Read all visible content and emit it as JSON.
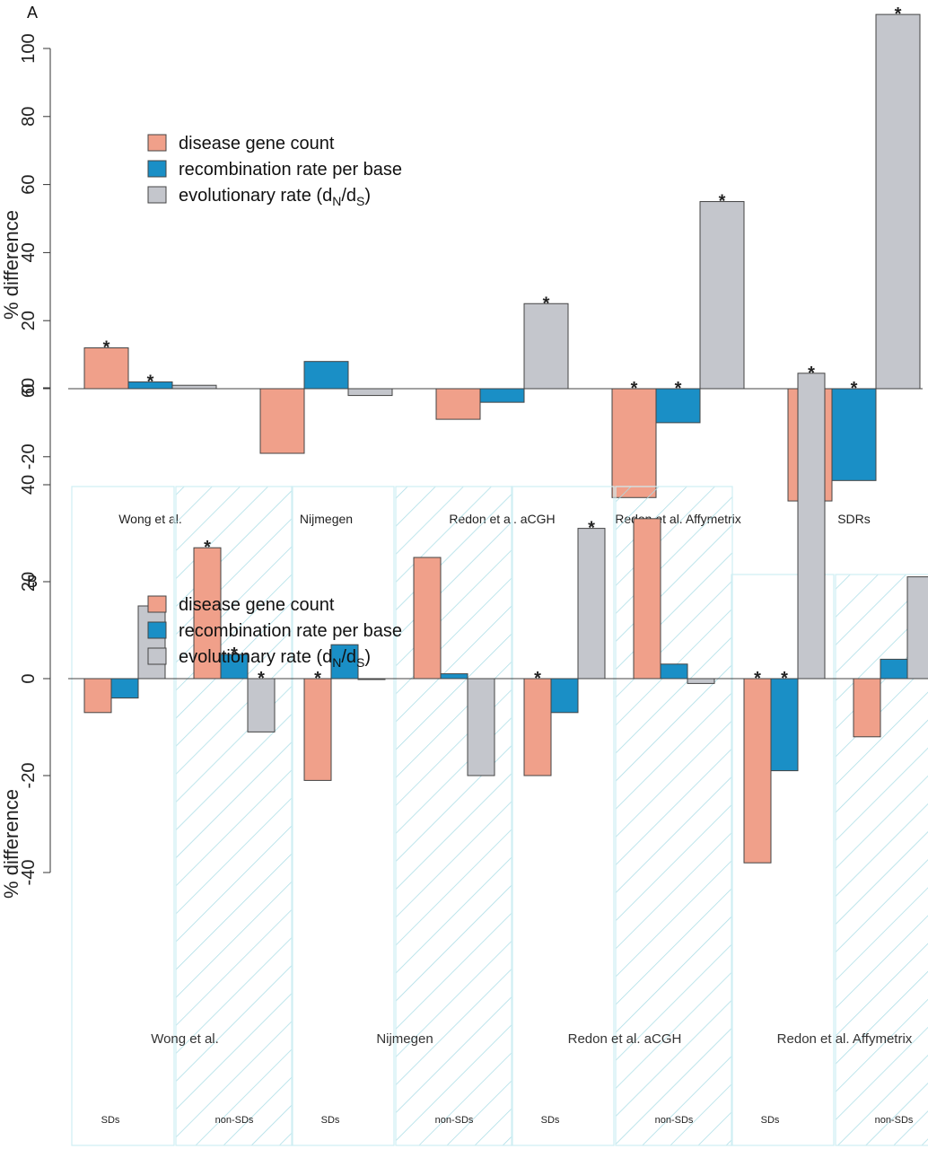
{
  "colors": {
    "disease": "#f0a08a",
    "recomb": "#1a8fc6",
    "evol": "#c4c6cc",
    "hatch": "#aadde6"
  },
  "legend": [
    {
      "key": "disease",
      "text": "disease gene count"
    },
    {
      "key": "recomb",
      "text": "recombination rate per base"
    },
    {
      "key": "evol",
      "text": "evolutionary rate (d",
      "sub1": "N",
      "mid": "/d",
      "sub2": "S",
      "tail": ")"
    }
  ],
  "chart_data": [
    {
      "panel": "A",
      "type": "bar",
      "ylabel": "% difference",
      "ylim": [
        -33,
        112
      ],
      "yticks": [
        -20,
        0,
        20,
        40,
        60,
        80,
        100
      ],
      "series_keys": [
        "disease",
        "recomb",
        "evol"
      ],
      "groups": [
        {
          "label": "Wong et al.",
          "values": [
            12,
            2,
            1
          ],
          "sig": [
            true,
            true,
            false
          ]
        },
        {
          "label": "Nijmegen",
          "values": [
            -19,
            8,
            -2
          ],
          "sig": [
            false,
            false,
            false
          ]
        },
        {
          "label": "Redon et al. aCGH",
          "values": [
            -9,
            -4,
            25
          ],
          "sig": [
            false,
            false,
            true
          ]
        },
        {
          "label": "Redon et al. Affymetrix",
          "values": [
            -32,
            -10,
            55
          ],
          "sig": [
            true,
            true,
            true
          ]
        },
        {
          "label": "SDRs",
          "values": [
            -33,
            -27,
            110
          ],
          "sig": [
            true,
            true,
            true
          ]
        }
      ]
    },
    {
      "panel": "B",
      "type": "bar",
      "ylabel": "% difference",
      "ylim": [
        -42,
        66
      ],
      "yticks": [
        -40,
        -20,
        0,
        20,
        40,
        60
      ],
      "series_keys": [
        "disease",
        "recomb",
        "evol"
      ],
      "groups": [
        {
          "label": "Wong et al.",
          "subgroups": [
            {
              "label": "SDs",
              "hatched": false,
              "values": [
                -7,
                -4,
                15
              ],
              "sig": [
                false,
                false,
                true
              ]
            },
            {
              "label": "non-SDs",
              "hatched": true,
              "values": [
                27,
                5,
                -11
              ],
              "sig": [
                true,
                true,
                true
              ]
            }
          ]
        },
        {
          "label": "Nijmegen",
          "subgroups": [
            {
              "label": "SDs",
              "hatched": false,
              "values": [
                -21,
                7,
                0
              ],
              "sig": [
                true,
                false,
                false
              ]
            },
            {
              "label": "non-SDs",
              "hatched": true,
              "values": [
                25,
                1,
                -20
              ],
              "sig": [
                false,
                false,
                false
              ]
            }
          ]
        },
        {
          "label": "Redon et al. aCGH",
          "subgroups": [
            {
              "label": "SDs",
              "hatched": false,
              "values": [
                -20,
                -7,
                31
              ],
              "sig": [
                true,
                false,
                true
              ]
            },
            {
              "label": "non-SDs",
              "hatched": true,
              "values": [
                33,
                3,
                -1
              ],
              "sig": [
                false,
                false,
                false
              ]
            }
          ]
        },
        {
          "label": "Redon et al. Affymetrix",
          "subgroups": [
            {
              "label": "SDs",
              "hatched": false,
              "values": [
                -38,
                -19,
                63
              ],
              "sig": [
                true,
                true,
                true
              ]
            },
            {
              "label": "non-SDs",
              "hatched": true,
              "values": [
                -12,
                4,
                21
              ],
              "sig": [
                false,
                false,
                false
              ]
            }
          ]
        }
      ]
    }
  ]
}
